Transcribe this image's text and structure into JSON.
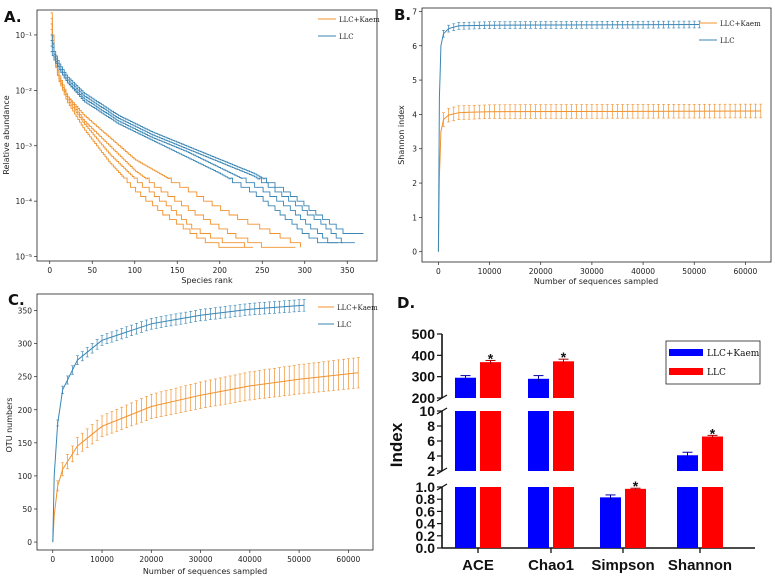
{
  "colors": {
    "kaem": "#f0922e",
    "llc": "#3a86b5",
    "barBlue": "#0000ff",
    "barRed": "#ff0000"
  },
  "chart_data": [
    {
      "panel": "A.",
      "type": "line",
      "xlabel": "Species rank",
      "ylabel": "Relative abundance",
      "yscale": "log",
      "xlim": [
        -15,
        385
      ],
      "ylim_log10": [
        -5.08,
        -0.55
      ],
      "x_ticks": [
        {
          "v": 0,
          "t": "0"
        },
        {
          "v": 50,
          "t": "50"
        },
        {
          "v": 100,
          "t": "100"
        },
        {
          "v": 150,
          "t": "150"
        },
        {
          "v": 200,
          "t": "200"
        },
        {
          "v": 250,
          "t": "250"
        },
        {
          "v": 300,
          "t": "300"
        },
        {
          "v": 350,
          "t": "350"
        }
      ],
      "y_ticks": [
        {
          "v": -1,
          "t": "10⁻¹"
        },
        {
          "v": -2,
          "t": "10⁻²"
        },
        {
          "v": -3,
          "t": "10⁻³"
        },
        {
          "v": -4,
          "t": "10⁻⁴"
        },
        {
          "v": -5,
          "t": "10⁻⁵"
        }
      ],
      "legend": [
        "LLC+Kaem",
        "LLC"
      ],
      "series": [
        {
          "name": "LLC+Kaem",
          "points": [
            [
              1,
              -0.6
            ],
            [
              5,
              -1.4
            ],
            [
              10,
              -1.8
            ],
            [
              20,
              -2.2
            ],
            [
              40,
              -2.7
            ],
            [
              70,
              -3.3
            ],
            [
              100,
              -3.8
            ],
            [
              140,
              -4.3
            ],
            [
              180,
              -4.7
            ],
            [
              210,
              -4.85
            ],
            [
              240,
              -4.85
            ]
          ]
        },
        {
          "name": "LLC+Kaem",
          "points": [
            [
              1,
              -0.8
            ],
            [
              5,
              -1.4
            ],
            [
              10,
              -1.7
            ],
            [
              20,
              -2.1
            ],
            [
              40,
              -2.55
            ],
            [
              70,
              -3.0
            ],
            [
              100,
              -3.45
            ],
            [
              140,
              -3.9
            ],
            [
              180,
              -4.3
            ],
            [
              220,
              -4.65
            ],
            [
              250,
              -4.8
            ],
            [
              290,
              -4.8
            ]
          ]
        },
        {
          "name": "LLC+Kaem",
          "points": [
            [
              1,
              -0.7
            ],
            [
              5,
              -1.35
            ],
            [
              10,
              -1.75
            ],
            [
              20,
              -2.15
            ],
            [
              40,
              -2.6
            ],
            [
              70,
              -3.15
            ],
            [
              100,
              -3.6
            ],
            [
              140,
              -4.1
            ],
            [
              170,
              -4.5
            ],
            [
              200,
              -4.7
            ],
            [
              230,
              -4.8
            ]
          ]
        },
        {
          "name": "LLC+Kaem",
          "points": [
            [
              1,
              -0.9
            ],
            [
              5,
              -1.45
            ],
            [
              10,
              -1.8
            ],
            [
              20,
              -2.1
            ],
            [
              40,
              -2.45
            ],
            [
              70,
              -2.85
            ],
            [
              100,
              -3.25
            ],
            [
              140,
              -3.6
            ],
            [
              180,
              -3.95
            ],
            [
              220,
              -4.3
            ],
            [
              260,
              -4.55
            ],
            [
              295,
              -4.8
            ]
          ]
        },
        {
          "name": "LLC",
          "points": [
            [
              1,
              -1.0
            ],
            [
              5,
              -1.3
            ],
            [
              10,
              -1.5
            ],
            [
              20,
              -1.75
            ],
            [
              40,
              -2.05
            ],
            [
              80,
              -2.45
            ],
            [
              120,
              -2.75
            ],
            [
              160,
              -3.0
            ],
            [
              200,
              -3.25
            ],
            [
              240,
              -3.5
            ],
            [
              280,
              -3.85
            ],
            [
              320,
              -4.3
            ],
            [
              350,
              -4.6
            ],
            [
              370,
              -4.6
            ]
          ]
        },
        {
          "name": "LLC",
          "points": [
            [
              1,
              -1.1
            ],
            [
              5,
              -1.35
            ],
            [
              10,
              -1.55
            ],
            [
              20,
              -1.8
            ],
            [
              40,
              -2.1
            ],
            [
              80,
              -2.5
            ],
            [
              120,
              -2.8
            ],
            [
              160,
              -3.05
            ],
            [
              200,
              -3.3
            ],
            [
              240,
              -3.55
            ],
            [
              280,
              -3.95
            ],
            [
              320,
              -4.4
            ],
            [
              345,
              -4.75
            ],
            [
              360,
              -4.75
            ]
          ]
        },
        {
          "name": "LLC",
          "points": [
            [
              1,
              -1.2
            ],
            [
              5,
              -1.4
            ],
            [
              10,
              -1.6
            ],
            [
              20,
              -1.85
            ],
            [
              40,
              -2.15
            ],
            [
              80,
              -2.55
            ],
            [
              120,
              -2.85
            ],
            [
              160,
              -3.1
            ],
            [
              200,
              -3.4
            ],
            [
              240,
              -3.7
            ],
            [
              280,
              -4.1
            ],
            [
              310,
              -4.5
            ],
            [
              330,
              -4.75
            ],
            [
              345,
              -4.75
            ]
          ]
        },
        {
          "name": "LLC",
          "points": [
            [
              1,
              -1.3
            ],
            [
              5,
              -1.45
            ],
            [
              10,
              -1.6
            ],
            [
              20,
              -1.85
            ],
            [
              40,
              -2.2
            ],
            [
              80,
              -2.6
            ],
            [
              120,
              -2.9
            ],
            [
              160,
              -3.2
            ],
            [
              200,
              -3.5
            ],
            [
              240,
              -3.85
            ],
            [
              270,
              -4.2
            ],
            [
              300,
              -4.6
            ],
            [
              320,
              -4.75
            ],
            [
              340,
              -4.75
            ]
          ]
        }
      ]
    },
    {
      "panel": "B.",
      "type": "line",
      "xlabel": "Number of sequences sampled",
      "ylabel": "Shannon index",
      "xlim": [
        -3200,
        65000
      ],
      "ylim": [
        -0.3,
        7.1
      ],
      "x_ticks": [
        {
          "v": 0,
          "t": "0"
        },
        {
          "v": 10000,
          "t": "10000"
        },
        {
          "v": 20000,
          "t": "20000"
        },
        {
          "v": 30000,
          "t": "30000"
        },
        {
          "v": 40000,
          "t": "40000"
        },
        {
          "v": 50000,
          "t": "50000"
        },
        {
          "v": 60000,
          "t": "60000"
        }
      ],
      "y_ticks": [
        {
          "v": 0,
          "t": "0"
        },
        {
          "v": 1,
          "t": "1"
        },
        {
          "v": 2,
          "t": "2"
        },
        {
          "v": 3,
          "t": "3"
        },
        {
          "v": 4,
          "t": "4"
        },
        {
          "v": 5,
          "t": "5"
        },
        {
          "v": 6,
          "t": "6"
        },
        {
          "v": 7,
          "t": "7"
        }
      ],
      "legend": [
        "LLC+Kaem",
        "LLC"
      ],
      "series": [
        {
          "name": "LLC+Kaem",
          "x_max": 63000,
          "error": 0.2,
          "points": [
            [
              0,
              0
            ],
            [
              200,
              2.2
            ],
            [
              500,
              3.5
            ],
            [
              1000,
              3.85
            ],
            [
              2000,
              3.98
            ],
            [
              4000,
              4.05
            ],
            [
              10000,
              4.08
            ],
            [
              63000,
              4.1
            ]
          ]
        },
        {
          "name": "LLC",
          "x_max": 51000,
          "error": 0.1,
          "points": [
            [
              0,
              0
            ],
            [
              200,
              4.5
            ],
            [
              500,
              6.0
            ],
            [
              1000,
              6.35
            ],
            [
              2000,
              6.5
            ],
            [
              4000,
              6.58
            ],
            [
              10000,
              6.6
            ],
            [
              51000,
              6.62
            ]
          ]
        }
      ]
    },
    {
      "panel": "C.",
      "type": "line",
      "xlabel": "Number of sequences sampled",
      "ylabel": "OTU numbers",
      "xlim": [
        -3200,
        65000
      ],
      "ylim": [
        -12,
        375
      ],
      "x_ticks": [
        {
          "v": 0,
          "t": "0"
        },
        {
          "v": 10000,
          "t": "10000"
        },
        {
          "v": 20000,
          "t": "20000"
        },
        {
          "v": 30000,
          "t": "30000"
        },
        {
          "v": 40000,
          "t": "40000"
        },
        {
          "v": 50000,
          "t": "50000"
        },
        {
          "v": 60000,
          "t": "60000"
        }
      ],
      "y_ticks": [
        {
          "v": 0,
          "t": "0"
        },
        {
          "v": 50,
          "t": "50"
        },
        {
          "v": 100,
          "t": "100"
        },
        {
          "v": 150,
          "t": "150"
        },
        {
          "v": 200,
          "t": "200"
        },
        {
          "v": 250,
          "t": "250"
        },
        {
          "v": 300,
          "t": "300"
        },
        {
          "v": 350,
          "t": "350"
        }
      ],
      "legend": [
        "LLC+Kaem",
        "LLC"
      ],
      "series": [
        {
          "name": "LLC+Kaem",
          "x_max": 62000,
          "ci_rel": 0.09,
          "points": [
            [
              0,
              0
            ],
            [
              300,
              40
            ],
            [
              1000,
              85
            ],
            [
              2000,
              110
            ],
            [
              5000,
              145
            ],
            [
              10000,
              175
            ],
            [
              20000,
              205
            ],
            [
              30000,
              222
            ],
            [
              40000,
              236
            ],
            [
              50000,
              246
            ],
            [
              62000,
              256
            ]
          ]
        },
        {
          "name": "LLC",
          "x_max": 51000,
          "ci_rel": 0.025,
          "points": [
            [
              0,
              0
            ],
            [
              300,
              100
            ],
            [
              1000,
              180
            ],
            [
              2000,
              230
            ],
            [
              5000,
              275
            ],
            [
              10000,
              305
            ],
            [
              20000,
              330
            ],
            [
              30000,
              343
            ],
            [
              40000,
              352
            ],
            [
              51000,
              358
            ]
          ]
        }
      ]
    },
    {
      "panel": "D.",
      "type": "bar",
      "ylabel": "Index",
      "categories": [
        "ACE",
        "Chao1",
        "Simpson",
        "Shannon"
      ],
      "legend": [
        "LLC+Kaem",
        "LLC"
      ],
      "series": [
        {
          "name": "LLC+Kaem",
          "values": [
            295,
            290,
            0.83,
            4.1
          ],
          "errors": [
            10,
            15,
            0.04,
            0.4
          ]
        },
        {
          "name": "LLC",
          "values": [
            368,
            372,
            0.97,
            6.6
          ],
          "errors": [
            8,
            10,
            0.01,
            0.15
          ]
        }
      ],
      "significance": [
        "*",
        "*",
        "*",
        "*"
      ],
      "axis_segments": [
        {
          "ylim": [
            200,
            500
          ],
          "ticks": [
            {
              "v": 500,
              "t": "500"
            },
            {
              "v": 400,
              "t": "400"
            },
            {
              "v": 300,
              "t": "300"
            },
            {
              "v": 200,
              "t": "200"
            }
          ]
        },
        {
          "ylim": [
            2,
            10
          ],
          "ticks": [
            {
              "v": 10,
              "t": "10"
            },
            {
              "v": 8,
              "t": "8"
            },
            {
              "v": 6,
              "t": "6"
            },
            {
              "v": 4,
              "t": "4"
            },
            {
              "v": 2,
              "t": "2"
            }
          ]
        },
        {
          "ylim": [
            0,
            1
          ],
          "ticks": [
            {
              "v": 1.0,
              "t": "1.0"
            },
            {
              "v": 0.8,
              "t": "0.8"
            },
            {
              "v": 0.6,
              "t": "0.6"
            },
            {
              "v": 0.4,
              "t": "0.4"
            },
            {
              "v": 0.2,
              "t": "0.2"
            },
            {
              "v": 0.0,
              "t": "0.0"
            }
          ]
        }
      ]
    }
  ]
}
